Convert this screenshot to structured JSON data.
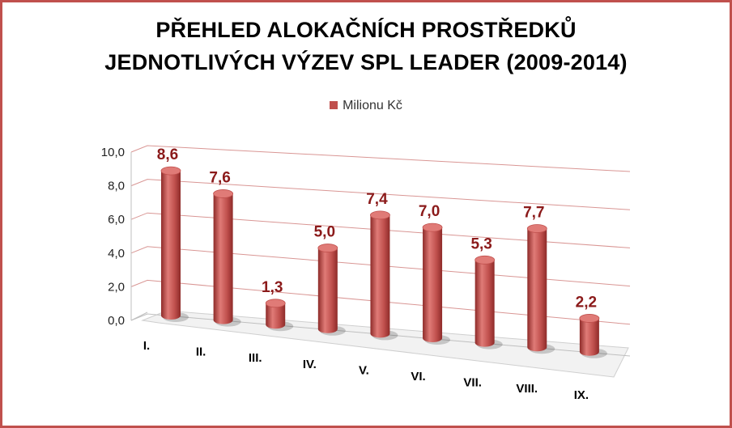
{
  "title": {
    "line1": "PŘEHLED ALOKAČNÍCH PROSTŘEDKŮ",
    "line2": "JEDNOTLIVÝCH VÝZEV SPL LEADER (2009-2014)"
  },
  "colors": {
    "bar": "#c0504d",
    "bar_dark": "#8e2b29",
    "bar_light": "#e07b77",
    "data_label": "#8b1a1a",
    "grid": "#d99694",
    "border": "#c0504d"
  },
  "chart_data": {
    "type": "bar",
    "style": "3d-cylinder",
    "title": "PŘEHLED ALOKAČNÍCH PROSTŘEDKŮ JEDNOTLIVÝCH VÝZEV SPL LEADER (2009-2014)",
    "categories": [
      "I.",
      "II.",
      "III.",
      "IV.",
      "V.",
      "VI.",
      "VII.",
      "VIII.",
      "IX."
    ],
    "series": [
      {
        "name": "Milionu Kč",
        "values": [
          8.6,
          7.6,
          1.3,
          5.0,
          7.4,
          7.0,
          5.3,
          7.7,
          2.2
        ],
        "labels": [
          "8,6",
          "7,6",
          "1,3",
          "5,0",
          "7,4",
          "7,0",
          "5,3",
          "7,7",
          "2,2"
        ]
      }
    ],
    "ylim": [
      0,
      10
    ],
    "yticks": [
      "0,0",
      "2,0",
      "4,0",
      "6,0",
      "8,0",
      "10,0"
    ],
    "legend_position": "top",
    "grid": true
  }
}
